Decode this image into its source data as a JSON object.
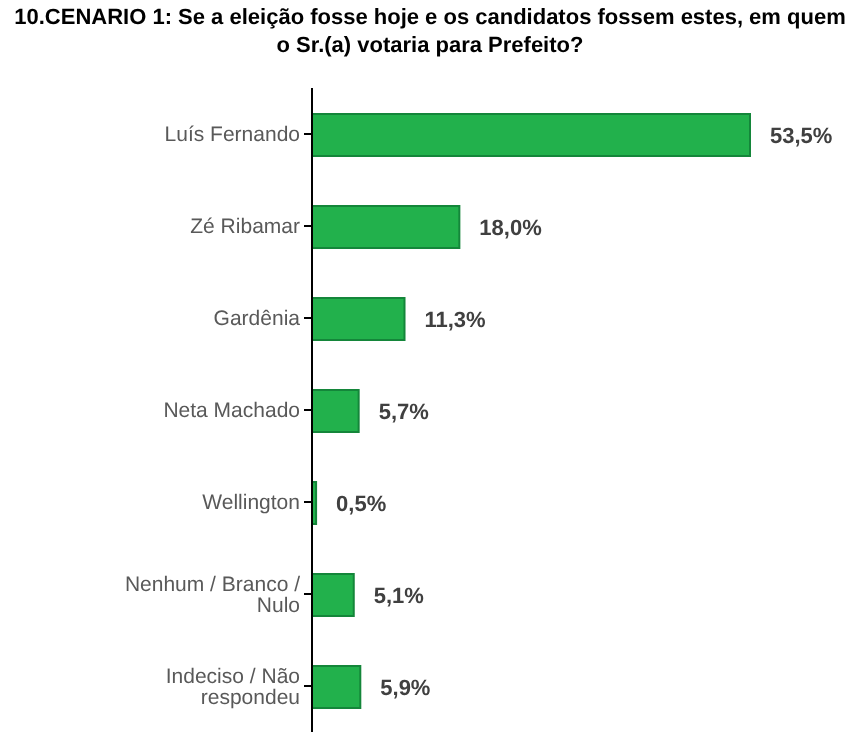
{
  "chart_data": {
    "type": "bar",
    "orientation": "horizontal",
    "title": "10.CENARIO 1: Se a eleição fosse hoje e os candidatos fossem estes, em quem o Sr.(a) votaria para Prefeito?",
    "categories": [
      "Luís Fernando",
      "Zé Ribamar",
      "Gardênia",
      "Neta Machado",
      "Wellington",
      "Nenhum / Branco / Nulo",
      "Indeciso / Não respondeu"
    ],
    "values": [
      53.5,
      18.0,
      11.3,
      5.7,
      0.5,
      5.1,
      5.9
    ],
    "value_labels": [
      "53,5%",
      "18,0%",
      "11,3%",
      "5,7%",
      "0,5%",
      "5,1%",
      "5,9%"
    ],
    "color": "#22b14c",
    "grid": false,
    "legend": false
  }
}
